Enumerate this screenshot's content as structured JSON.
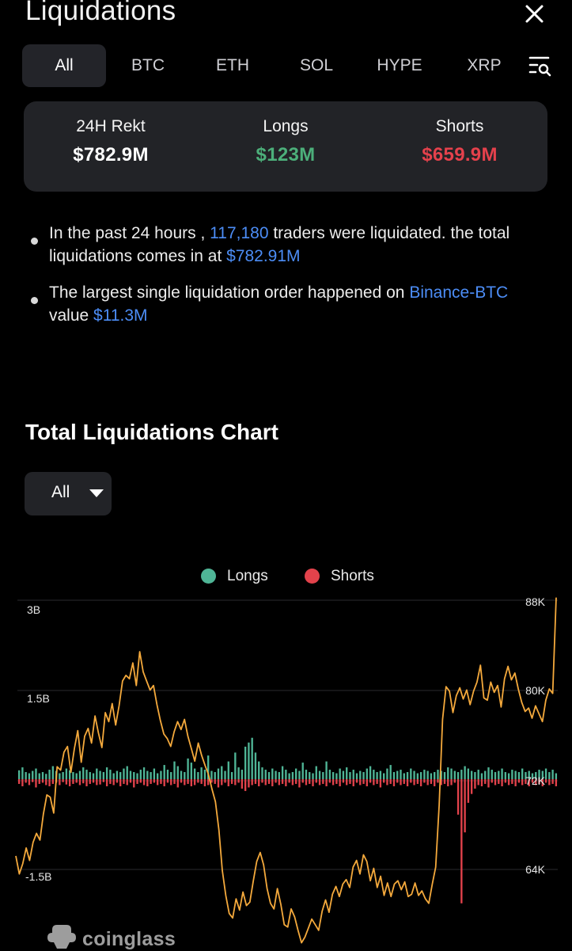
{
  "header": {
    "title": "Liquidations",
    "close_icon": "close-icon"
  },
  "tabs": [
    {
      "label": "All",
      "active": true
    },
    {
      "label": "BTC",
      "active": false
    },
    {
      "label": "ETH",
      "active": false
    },
    {
      "label": "SOL",
      "active": false
    },
    {
      "label": "HYPE",
      "active": false
    },
    {
      "label": "XRP",
      "active": false
    }
  ],
  "filter_icon": "filter-search-icon",
  "summary": {
    "rekt_label": "24H Rekt",
    "rekt_value": "$782.9M",
    "longs_label": "Longs",
    "longs_value": "$123M",
    "shorts_label": "Shorts",
    "shorts_value": "$659.9M"
  },
  "info": {
    "line1_pre": "In the past 24 hours , ",
    "line1_traders": "117,180",
    "line1_mid": " traders were liquidated. the total liquidations comes in at ",
    "line1_total": "$782.91M",
    "line2_pre": "The largest single liquidation order happened on ",
    "line2_exchange": "Binance-BTC",
    "line2_mid": " value ",
    "line2_value": "$11.3M"
  },
  "chart_section": {
    "title": "Total Liquidations Chart",
    "filter_value": "All"
  },
  "colors": {
    "longs": "#4fb596",
    "shorts": "#e2424b",
    "price": "#f4a93c",
    "accent_blue": "#4c8df6",
    "positive": "#4caf7a",
    "negative": "#e5414c"
  },
  "chart_data": {
    "type": "bar",
    "legend": [
      "Longs",
      "Shorts"
    ],
    "legend_position": "top-center",
    "left_axis": {
      "ticks": [
        "3B",
        "1.5B",
        "-1.5B"
      ],
      "range": [
        -3000000000,
        3000000000
      ]
    },
    "right_axis": {
      "ticks": [
        "88K",
        "80K",
        "72K",
        "64K"
      ],
      "range": [
        58000,
        90000
      ]
    },
    "grid": true,
    "series": [
      {
        "name": "Longs",
        "kind": "bar",
        "values": [
          0.15,
          0.2,
          0.12,
          0.1,
          0.14,
          0.18,
          0.1,
          0.12,
          0.09,
          0.16,
          0.22,
          0.14,
          0.1,
          0.12,
          0.18,
          0.15,
          0.12,
          0.1,
          0.14,
          0.2,
          0.16,
          0.12,
          0.1,
          0.18,
          0.14,
          0.12,
          0.2,
          0.16,
          0.1,
          0.14,
          0.12,
          0.18,
          0.22,
          0.14,
          0.12,
          0.1,
          0.16,
          0.2,
          0.14,
          0.12,
          0.18,
          0.1,
          0.14,
          0.24,
          0.16,
          0.12,
          0.3,
          0.22,
          0.14,
          0.12,
          0.35,
          0.28,
          0.18,
          0.12,
          0.2,
          0.16,
          0.4,
          0.14,
          0.12,
          0.18,
          0.22,
          0.14,
          0.3,
          0.12,
          0.45,
          0.2,
          0.16,
          0.55,
          0.62,
          0.7,
          0.45,
          0.3,
          0.2,
          0.16,
          0.12,
          0.18,
          0.14,
          0.12,
          0.22,
          0.16,
          0.1,
          0.12,
          0.18,
          0.14,
          0.28,
          0.16,
          0.12,
          0.1,
          0.22,
          0.14,
          0.12,
          0.3,
          0.16,
          0.12,
          0.1,
          0.18,
          0.14,
          0.2,
          0.12,
          0.16,
          0.1,
          0.14,
          0.12,
          0.18,
          0.22,
          0.16,
          0.12,
          0.14,
          0.1,
          0.18,
          0.24,
          0.12,
          0.14,
          0.16,
          0.1,
          0.12,
          0.18,
          0.14,
          0.1,
          0.12,
          0.16,
          0.14,
          0.1,
          0.12,
          0.16,
          0.14,
          0.12,
          0.2,
          0.18,
          0.14,
          0.12,
          0.16,
          0.22,
          0.18,
          0.14,
          0.12,
          0.16,
          0.1,
          0.14,
          0.2,
          0.16,
          0.12,
          0.14,
          0.18,
          0.12,
          0.1,
          0.16,
          0.14,
          0.12,
          0.18,
          0.12,
          0.14,
          0.1,
          0.12,
          0.16,
          0.14,
          0.18,
          0.12,
          0.16,
          0.1
        ]
      },
      {
        "name": "Shorts",
        "kind": "bar",
        "values": [
          -0.08,
          -0.12,
          -0.06,
          -0.1,
          -0.05,
          -0.14,
          -0.08,
          -0.06,
          -0.1,
          -0.12,
          -0.08,
          -0.06,
          -0.1,
          -0.05,
          -0.09,
          -0.12,
          -0.08,
          -0.06,
          -0.1,
          -0.07,
          -0.12,
          -0.08,
          -0.06,
          -0.1,
          -0.09,
          -0.05,
          -0.12,
          -0.08,
          -0.1,
          -0.06,
          -0.12,
          -0.08,
          -0.1,
          -0.06,
          -0.14,
          -0.08,
          -0.06,
          -0.1,
          -0.12,
          -0.08,
          -0.06,
          -0.1,
          -0.08,
          -0.12,
          -0.06,
          -0.1,
          -0.08,
          -0.14,
          -0.06,
          -0.1,
          -0.08,
          -0.12,
          -0.1,
          -0.06,
          -0.08,
          -0.12,
          -0.1,
          -0.06,
          -0.08,
          -0.14,
          -0.1,
          -0.06,
          -0.12,
          -0.08,
          -0.1,
          -0.06,
          -0.16,
          -0.2,
          -0.14,
          -0.1,
          -0.08,
          -0.12,
          -0.06,
          -0.1,
          -0.08,
          -0.12,
          -0.06,
          -0.1,
          -0.08,
          -0.12,
          -0.06,
          -0.1,
          -0.08,
          -0.14,
          -0.06,
          -0.1,
          -0.08,
          -0.12,
          -0.06,
          -0.1,
          -0.08,
          -0.12,
          -0.06,
          -0.1,
          -0.08,
          -0.12,
          -0.06,
          -0.1,
          -0.08,
          -0.12,
          -0.06,
          -0.1,
          -0.08,
          -0.12,
          -0.06,
          -0.1,
          -0.08,
          -0.14,
          -0.06,
          -0.1,
          -0.08,
          -0.12,
          -0.06,
          -0.1,
          -0.08,
          -0.12,
          -0.06,
          -0.1,
          -0.08,
          -0.12,
          -0.06,
          -0.1,
          -0.08,
          -0.12,
          -0.06,
          -0.1,
          -0.08,
          -0.12,
          -0.1,
          -0.06,
          -0.6,
          -2.1,
          -0.9,
          -0.4,
          -0.25,
          -0.16,
          -0.1,
          -0.12,
          -0.08,
          -0.14,
          -0.06,
          -0.1,
          -0.08,
          -0.12,
          -0.06,
          -0.1,
          -0.08,
          -0.12,
          -0.06,
          -0.1,
          -0.08,
          -0.12,
          -0.06,
          -0.1,
          -0.08,
          -0.12,
          -0.06,
          -0.1,
          -0.08,
          -0.12,
          -0.06,
          -0.12,
          -0.2,
          -0.14
        ]
      },
      {
        "name": "Price",
        "kind": "line",
        "values": [
          65200,
          63600,
          64500,
          65900,
          64800,
          66400,
          67200,
          66600,
          68900,
          70600,
          70400,
          69000,
          73100,
          72800,
          74400,
          74900,
          72600,
          74700,
          76300,
          73500,
          75800,
          76500,
          75200,
          77600,
          76100,
          74800,
          77900,
          77100,
          78700,
          76800,
          78500,
          80700,
          81200,
          80900,
          82300,
          80300,
          83300,
          81500,
          80700,
          79900,
          80300,
          78600,
          77200,
          76000,
          75600,
          74900,
          76200,
          77100,
          76400,
          77300,
          75800,
          74700,
          73600,
          75200,
          74100,
          73200,
          72400,
          71100,
          70000,
          67500,
          63900,
          61700,
          60100,
          59700,
          61400,
          60400,
          62000,
          60800,
          61100,
          63000,
          64700,
          65500,
          64400,
          62300,
          61000,
          60500,
          62300,
          60900,
          59100,
          58900,
          60500,
          59800,
          58600,
          57500,
          58000,
          58800,
          59600,
          59100,
          58600,
          60300,
          61300,
          60200,
          61800,
          62500,
          61600,
          62700,
          63100,
          62400,
          64200,
          64800,
          63600,
          65300,
          64700,
          63000,
          64100,
          62400,
          63400,
          61700,
          62800,
          61600,
          62700,
          63000,
          62200,
          62900,
          61600,
          61800,
          62800,
          61700,
          62100,
          61400,
          61000,
          62700,
          64200,
          69700,
          77300,
          80200,
          79800,
          77900,
          79400,
          80100,
          79100,
          79900,
          78600,
          79800,
          80600,
          82100,
          79200,
          79000,
          80600,
          79700,
          80300,
          78400,
          80900,
          82000,
          80800,
          81400,
          80000,
          78800,
          78000,
          78300,
          77400,
          78500,
          77800,
          77100,
          79000,
          80000,
          79600,
          88100
        ]
      }
    ]
  },
  "watermark": "coinglass"
}
